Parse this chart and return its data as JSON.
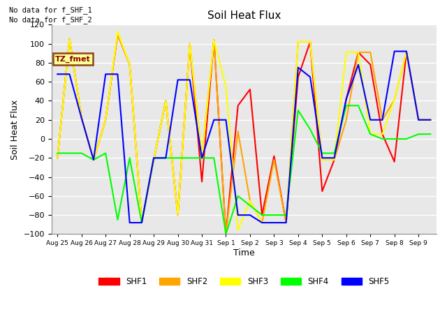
{
  "title": "Soil Heat Flux",
  "xlabel": "Time",
  "ylabel": "Soil Heat Flux",
  "ylim": [
    -100,
    120
  ],
  "annotation_text1": "No data for f_SHF_1",
  "annotation_text2": "No data for f_SHF_2",
  "tz_label": "TZ_fmet",
  "tz_bg": "#FFFF99",
  "tz_border": "#8B4513",
  "tz_text_color": "#8B0000",
  "plot_bg": "#E8E8E8",
  "grid_color": "white",
  "x_tick_labels": [
    "Aug 25",
    "Aug 26",
    "Aug 27",
    "Aug 28",
    "Aug 29",
    "Aug 30",
    "Aug 31",
    "Sep 1",
    "Sep 2",
    "Sep 3",
    "Sep 4",
    "Sep 5",
    "Sep 6",
    "Sep 7",
    "Sep 8",
    "Sep 9"
  ],
  "x_tick_positions": [
    0,
    2,
    4,
    6,
    8,
    10,
    12,
    14,
    16,
    18,
    20,
    22,
    24,
    26,
    28,
    30
  ],
  "xlim": [
    -0.5,
    31.5
  ],
  "SHF1_x": [
    0,
    1,
    2,
    3,
    4,
    5,
    6,
    7,
    8,
    9,
    10,
    11,
    12,
    13,
    14,
    15,
    16,
    17,
    18,
    19,
    20,
    21,
    22,
    23,
    24,
    25,
    26,
    27,
    28,
    29,
    30,
    31
  ],
  "SHF1_y": [
    -20,
    105,
    22,
    -22,
    20,
    110,
    78,
    -88,
    -22,
    40,
    -80,
    100,
    -45,
    104,
    -100,
    35,
    52,
    -80,
    -18,
    -88,
    65,
    102,
    -55,
    -22,
    42,
    91,
    78,
    5,
    -24,
    91,
    20,
    20
  ],
  "SHF2_x": [
    0,
    1,
    2,
    3,
    4,
    5,
    6,
    7,
    8,
    9,
    10,
    11,
    12,
    13,
    14,
    15,
    16,
    17,
    18,
    19,
    20,
    21,
    22,
    23,
    24,
    25,
    26,
    27,
    28,
    29,
    30,
    31
  ],
  "SHF2_y": [
    -20,
    105,
    22,
    -22,
    20,
    110,
    78,
    -88,
    -22,
    40,
    -80,
    100,
    -20,
    104,
    -100,
    8,
    -65,
    -88,
    -22,
    -88,
    102,
    102,
    -22,
    -22,
    20,
    91,
    91,
    20,
    41,
    91,
    20,
    20
  ],
  "SHF3_x": [
    0,
    1,
    2,
    3,
    4,
    5,
    6,
    7,
    8,
    9,
    10,
    11,
    12,
    13,
    14,
    15,
    16,
    17,
    18,
    19,
    20,
    21,
    22,
    23,
    24,
    25,
    26,
    27,
    28,
    29,
    30,
    31
  ],
  "SHF3_y": [
    -20,
    105,
    22,
    -22,
    20,
    113,
    78,
    -88,
    -22,
    40,
    -80,
    100,
    -20,
    104,
    55,
    -96,
    -65,
    -88,
    -88,
    -88,
    102,
    102,
    -22,
    -22,
    91,
    91,
    5,
    5,
    41,
    91,
    20,
    20
  ],
  "SHF4_x": [
    0,
    1,
    2,
    3,
    4,
    5,
    6,
    7,
    8,
    9,
    10,
    11,
    12,
    13,
    14,
    15,
    16,
    17,
    18,
    19,
    20,
    21,
    22,
    23,
    24,
    25,
    26,
    27,
    28,
    29,
    30,
    31
  ],
  "SHF4_y": [
    -15,
    -15,
    -15,
    -22,
    -15,
    -85,
    -20,
    -88,
    -20,
    -20,
    -20,
    -20,
    -20,
    -20,
    -100,
    -60,
    -70,
    -80,
    -80,
    -80,
    30,
    10,
    -15,
    -15,
    35,
    35,
    5,
    0,
    0,
    0,
    5,
    5
  ],
  "SHF5_x": [
    0,
    1,
    2,
    3,
    4,
    5,
    6,
    7,
    8,
    9,
    10,
    11,
    12,
    13,
    14,
    15,
    16,
    17,
    18,
    19,
    20,
    21,
    22,
    23,
    24,
    25,
    26,
    27,
    28,
    29,
    30,
    31
  ],
  "SHF5_y": [
    68,
    68,
    22,
    -22,
    68,
    68,
    -88,
    -88,
    -20,
    -20,
    62,
    62,
    -20,
    20,
    20,
    -80,
    -80,
    -88,
    -88,
    -88,
    75,
    65,
    -20,
    -20,
    42,
    78,
    20,
    20,
    92,
    92,
    20,
    20
  ],
  "colors": {
    "SHF1": "#FF0000",
    "SHF2": "#FFA500",
    "SHF3": "#FFFF00",
    "SHF4": "#00FF00",
    "SHF5": "#0000FF"
  },
  "legend_labels": [
    "SHF1",
    "SHF2",
    "SHF3",
    "SHF4",
    "SHF5"
  ]
}
